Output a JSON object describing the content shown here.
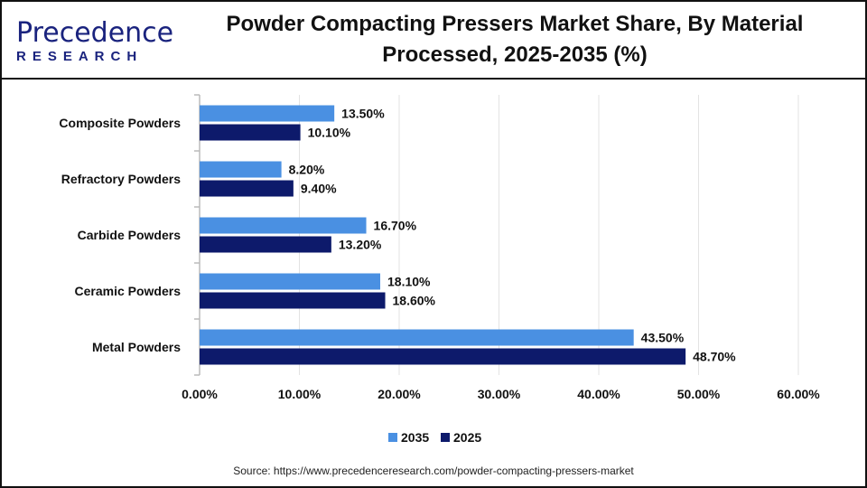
{
  "brand": {
    "name_line1": "Precedence",
    "name_line2": "RESEARCH"
  },
  "title_line1": "Powder Compacting Pressers Market Share, By Material",
  "title_line2": "Processed, 2025-2035 (%)",
  "source": "Source: https://www.precedenceresearch.com/powder-compacting-pressers-market",
  "chart_data": {
    "type": "bar",
    "orientation": "horizontal",
    "categories": [
      "Composite Powders",
      "Refractory Powders",
      "Carbide Powders",
      "Ceramic Powders",
      "Metal Powders"
    ],
    "series": [
      {
        "name": "2035",
        "color": "#4a90e2",
        "values": [
          13.5,
          8.2,
          16.7,
          18.1,
          43.5
        ],
        "labels": [
          "13.50%",
          "8.20%",
          "16.70%",
          "18.10%",
          "43.50%"
        ]
      },
      {
        "name": "2025",
        "color": "#0d1a6b",
        "values": [
          10.1,
          9.4,
          13.2,
          18.6,
          48.7
        ],
        "labels": [
          "10.10%",
          "9.40%",
          "13.20%",
          "18.60%",
          "48.70%"
        ]
      }
    ],
    "xlim": [
      0,
      60
    ],
    "xticks": [
      "0.00%",
      "10.00%",
      "20.00%",
      "30.00%",
      "40.00%",
      "50.00%",
      "60.00%"
    ],
    "grid": true,
    "legend_position": "bottom"
  }
}
